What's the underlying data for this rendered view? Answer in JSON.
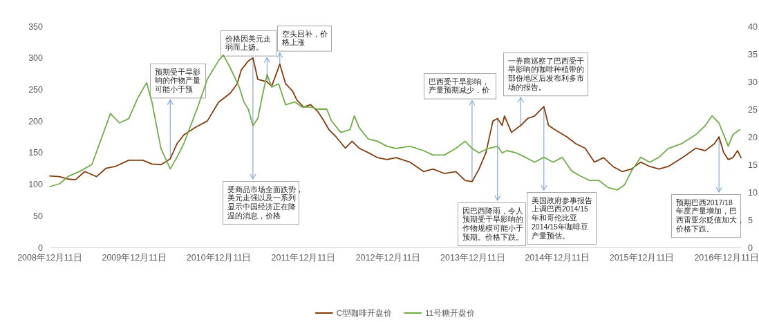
{
  "chart_data": {
    "type": "line",
    "xlim": [
      "2008-12-11",
      "2017-02-11"
    ],
    "xticks": [
      {
        "value": "2008-12-11",
        "label": "2008年12月11日"
      },
      {
        "value": "2009-12-11",
        "label": "2009年12月11日"
      },
      {
        "value": "2010-12-11",
        "label": "2010年12月11日"
      },
      {
        "value": "2011-12-11",
        "label": "2011年12月11日"
      },
      {
        "value": "2012-12-11",
        "label": "2012年12月11日"
      },
      {
        "value": "2013-12-11",
        "label": "2013年12月11日"
      },
      {
        "value": "2014-12-11",
        "label": "2014年12月11日"
      },
      {
        "value": "2015-12-11",
        "label": "2015年12月11日"
      },
      {
        "value": "2016-12-11",
        "label": "2016年12月11日"
      }
    ],
    "ylim": [
      0,
      350
    ],
    "yticks": [
      0,
      50,
      100,
      150,
      200,
      250,
      300,
      350
    ],
    "y2lim": [
      0,
      40
    ],
    "y2ticks": [
      0,
      5,
      10,
      15,
      20,
      25,
      30,
      35,
      40
    ],
    "legend": "bottom",
    "series": [
      {
        "name": "C型咖啡开盘价",
        "color": "#843c0c",
        "axis": "y",
        "x": [
          "2008-12-11",
          "2009-01-22",
          "2009-03-03",
          "2009-04-01",
          "2009-05-11",
          "2009-07-01",
          "2009-08-10",
          "2009-09-19",
          "2009-11-17",
          "2010-01-16",
          "2010-02-25",
          "2010-04-05",
          "2010-05-15",
          "2010-06-13",
          "2010-07-13",
          "2010-09-01",
          "2010-10-22",
          "2010-12-10",
          "2011-01-29",
          "2011-02-28",
          "2011-03-18",
          "2011-04-17",
          "2011-05-07",
          "2011-05-28",
          "2011-07-07",
          "2011-07-27",
          "2011-08-31",
          "2011-09-25",
          "2011-10-24",
          "2011-11-13",
          "2011-12-12",
          "2012-01-11",
          "2012-02-11",
          "2012-03-02",
          "2012-03-31",
          "2012-04-30",
          "2012-06-09",
          "2012-07-08",
          "2012-08-07",
          "2012-09-16",
          "2012-10-26",
          "2012-12-05",
          "2013-01-14",
          "2013-03-14",
          "2013-05-13",
          "2013-06-22",
          "2013-08-10",
          "2013-09-29",
          "2013-11-08",
          "2013-12-08",
          "2014-01-07",
          "2014-02-06",
          "2014-03-08",
          "2014-03-28",
          "2014-04-17",
          "2014-04-27",
          "2014-05-27",
          "2014-07-06",
          "2014-08-05",
          "2014-09-04",
          "2014-10-14",
          "2014-11-03",
          "2014-12-02",
          "2015-01-21",
          "2015-03-01",
          "2015-04-10",
          "2015-05-20",
          "2015-06-29",
          "2015-08-08",
          "2015-09-17",
          "2015-10-27",
          "2015-12-06",
          "2016-01-14",
          "2016-02-23",
          "2016-04-03",
          "2016-06-02",
          "2016-07-31",
          "2016-09-09",
          "2016-10-19",
          "2016-11-08",
          "2016-11-28",
          "2016-12-18",
          "2017-01-07",
          "2017-01-27",
          "2017-02-11"
        ],
        "values": [
          113,
          112,
          108,
          107,
          120,
          112,
          125,
          128,
          138,
          138,
          132,
          131,
          140,
          164,
          178,
          190,
          200,
          230,
          244,
          259,
          281,
          295,
          300,
          266,
          262,
          255,
          290,
          259,
          248,
          233,
          222,
          226,
          215,
          204,
          186,
          175,
          157,
          168,
          157,
          150,
          142,
          139,
          142,
          135,
          120,
          124,
          117,
          120,
          106,
          104,
          124,
          150,
          200,
          204,
          193,
          208,
          182,
          193,
          204,
          208,
          223,
          193,
          186,
          175,
          164,
          157,
          135,
          142,
          128,
          120,
          124,
          135,
          128,
          124,
          128,
          142,
          157,
          153,
          164,
          175,
          150,
          139,
          142,
          153,
          142
        ]
      },
      {
        "name": "11号糖开盘价",
        "color": "#70ad47",
        "axis": "y2",
        "x": [
          "2008-12-11",
          "2009-01-22",
          "2009-03-03",
          "2009-04-22",
          "2009-06-11",
          "2009-08-30",
          "2009-10-08",
          "2009-11-17",
          "2009-12-27",
          "2010-02-02",
          "2010-02-25",
          "2010-04-05",
          "2010-05-15",
          "2010-06-13",
          "2010-07-13",
          "2010-09-11",
          "2010-10-22",
          "2010-12-10",
          "2010-12-30",
          "2011-01-29",
          "2011-03-09",
          "2011-03-29",
          "2011-04-17",
          "2011-05-07",
          "2011-05-28",
          "2011-06-17",
          "2011-07-07",
          "2011-07-27",
          "2011-08-26",
          "2011-09-25",
          "2011-11-04",
          "2011-12-04",
          "2012-01-11",
          "2012-02-11",
          "2012-03-21",
          "2012-04-10",
          "2012-05-20",
          "2012-06-29",
          "2012-07-18",
          "2012-08-07",
          "2012-09-16",
          "2012-10-26",
          "2012-12-05",
          "2013-01-14",
          "2013-03-14",
          "2013-05-13",
          "2013-06-22",
          "2013-08-10",
          "2013-09-29",
          "2013-11-08",
          "2013-12-08",
          "2014-01-07",
          "2014-02-16",
          "2014-03-28",
          "2014-04-17",
          "2014-05-07",
          "2014-06-16",
          "2014-07-26",
          "2014-09-04",
          "2014-10-14",
          "2014-11-23",
          "2015-01-01",
          "2015-02-11",
          "2015-03-21",
          "2015-04-30",
          "2015-06-09",
          "2015-07-19",
          "2015-08-28",
          "2015-09-27",
          "2015-10-27",
          "2015-12-06",
          "2016-01-14",
          "2016-02-23",
          "2016-04-03",
          "2016-06-02",
          "2016-07-31",
          "2016-09-09",
          "2016-10-09",
          "2016-11-08",
          "2016-11-28",
          "2016-12-18",
          "2017-01-07",
          "2017-02-06"
        ],
        "values": [
          11.0,
          11.5,
          12.9,
          13.8,
          15.0,
          24.2,
          22.5,
          23.3,
          27.1,
          29.8,
          26.3,
          17.9,
          14.2,
          16.3,
          18.8,
          25.4,
          30.4,
          33.8,
          34.8,
          32.5,
          29.0,
          26.3,
          25.0,
          22.0,
          23.3,
          27.5,
          31.3,
          29.0,
          29.6,
          25.8,
          26.3,
          25.4,
          25.4,
          25.0,
          25.0,
          22.9,
          20.8,
          21.3,
          23.8,
          21.7,
          19.6,
          19.2,
          18.3,
          17.9,
          18.3,
          17.5,
          16.7,
          16.7,
          17.9,
          19.2,
          17.9,
          17.1,
          17.9,
          18.3,
          17.1,
          17.5,
          17.1,
          16.3,
          15.4,
          16.3,
          15.4,
          16.3,
          13.8,
          12.9,
          12.1,
          12.1,
          10.8,
          10.4,
          11.3,
          13.8,
          16.3,
          15.4,
          16.3,
          17.9,
          18.8,
          20.4,
          22.0,
          23.8,
          22.5,
          20.4,
          18.3,
          20.4,
          21.3
        ]
      }
    ],
    "annotations": [
      {
        "text": "预期受干旱影响的作物产量可能小于预",
        "x": "2010-05-15",
        "y": 140
      },
      {
        "text": "价格因美元走弱而上扬。",
        "x": "2011-07-07",
        "y": 262
      },
      {
        "text": "空头回补，价格上涨",
        "x": "2011-08-31",
        "y": 290
      },
      {
        "text": "受商品市场全面跌势，美元走强以及一系列显示中国经济正在降温的消息，价格",
        "x": "2011-05-07",
        "y": 300
      },
      {
        "text": "巴西受干旱影响，产量预期减少，价",
        "x": "2013-12-08",
        "y": 104
      },
      {
        "text": "一券商巡察了巴西受干旱影响的咖啡种植带的部份地区后发布利多市场的报告。",
        "x": "2014-07-06",
        "y": 193
      },
      {
        "text": "因巴西降雨，令人预期受干旱影响的作物规模可能小于预期。价格下跌。",
        "x": "2014-03-28",
        "y": 204
      },
      {
        "text": "美国政府参事报告上调巴西2014/15年和哥伦比亚2014/15年咖啡豆产量预估。",
        "x": "2014-10-14",
        "y": 223
      },
      {
        "text": "预期巴西2017/18年度产量增加，巴西雷亚尔贬值加大，价格下跌。",
        "x": "2016-11-08",
        "y": 175
      }
    ]
  }
}
